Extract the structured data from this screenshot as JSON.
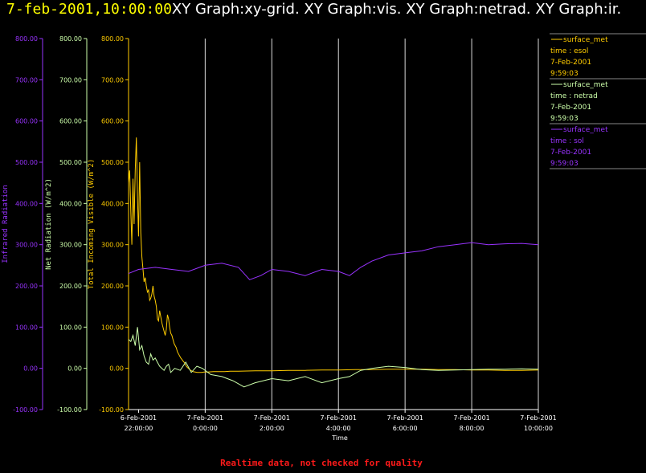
{
  "header": {
    "datetime": "7-feb-2001,10:00:00",
    "graphs": "XY Graph:xy-grid.  XY Graph:vis.  XY Graph:netrad.  XY Graph:ir."
  },
  "footer": {
    "note": "Realtime data, not checked for quality"
  },
  "colors": {
    "visible": "#ffcc00",
    "netrad": "#ccffaa",
    "infrared": "#9933ff",
    "grid": "#ffffff",
    "note": "#ff1a1a"
  },
  "legend": [
    {
      "name": "surface_met",
      "var": "time : esol",
      "date": "7-Feb-2001",
      "time": "9:59:03",
      "color": "#ffcc00"
    },
    {
      "name": "surface_met",
      "var": "time : netrad",
      "date": "7-Feb-2001",
      "time": "9:59:03",
      "color": "#ccffaa"
    },
    {
      "name": "surface_met",
      "var": "time : sol",
      "date": "7-Feb-2001",
      "time": "9:59:03",
      "color": "#9933ff"
    }
  ],
  "chart_data": {
    "type": "line",
    "xlabel": "Time",
    "xlim": [
      "2001-02-06 21:42",
      "2001-02-07 10:00"
    ],
    "x_ticks": [
      {
        "t": "2001-02-06 22:00",
        "date": "6-Feb-2001",
        "time": "22:00:00"
      },
      {
        "t": "2001-02-07 00:00",
        "date": "7-Feb-2001",
        "time": "0:00:00"
      },
      {
        "t": "2001-02-07 02:00",
        "date": "7-Feb-2001",
        "time": "2:00:00"
      },
      {
        "t": "2001-02-07 04:00",
        "date": "7-Feb-2001",
        "time": "4:00:00"
      },
      {
        "t": "2001-02-07 06:00",
        "date": "7-Feb-2001",
        "time": "6:00:00"
      },
      {
        "t": "2001-02-07 08:00",
        "date": "7-Feb-2001",
        "time": "8:00:00"
      },
      {
        "t": "2001-02-07 10:00",
        "date": "7-Feb-2001",
        "time": "10:00:00"
      }
    ],
    "y_axes": [
      {
        "key": "ir",
        "label": "Infrared Radiation",
        "ylim": [
          -100,
          800
        ],
        "ticks": [
          "-100.00",
          "0.00",
          "100.00",
          "200.00",
          "300.00",
          "400.00",
          "500.00",
          "600.00",
          "700.00",
          "800.00"
        ]
      },
      {
        "key": "net",
        "label": "Net Radiation (W/m^2)",
        "ylim": [
          -100,
          800
        ],
        "ticks": [
          "-100.00",
          "0.00",
          "100.00",
          "200.00",
          "300.00",
          "400.00",
          "500.00",
          "600.00",
          "700.00",
          "800.00"
        ]
      },
      {
        "key": "vis",
        "label": "Total Incoming Visible (W/m^2)",
        "ylim": [
          -100,
          800
        ],
        "ticks": [
          "-100.00",
          "0.00",
          "100.00",
          "200.00",
          "300.00",
          "400.00",
          "500.00",
          "600.00",
          "700.00",
          "800.00"
        ]
      }
    ],
    "grid": "vertical",
    "series": [
      {
        "name": "surface_met",
        "axis": "vis",
        "t": [
          "2001-02-06 21:42",
          "2001-02-06 21:44",
          "2001-02-06 21:46",
          "2001-02-06 21:48",
          "2001-02-06 21:50",
          "2001-02-06 21:52",
          "2001-02-06 21:54",
          "2001-02-06 21:56",
          "2001-02-06 21:58",
          "2001-02-06 22:00",
          "2001-02-06 22:02",
          "2001-02-06 22:04",
          "2001-02-06 22:06",
          "2001-02-06 22:08",
          "2001-02-06 22:10",
          "2001-02-06 22:12",
          "2001-02-06 22:14",
          "2001-02-06 22:16",
          "2001-02-06 22:18",
          "2001-02-06 22:20",
          "2001-02-06 22:22",
          "2001-02-06 22:24",
          "2001-02-06 22:26",
          "2001-02-06 22:28",
          "2001-02-06 22:30",
          "2001-02-06 22:32",
          "2001-02-06 22:34",
          "2001-02-06 22:36",
          "2001-02-06 22:38",
          "2001-02-06 22:40",
          "2001-02-06 22:42",
          "2001-02-06 22:44",
          "2001-02-06 22:46",
          "2001-02-06 22:48",
          "2001-02-06 22:50",
          "2001-02-06 22:52",
          "2001-02-06 22:54",
          "2001-02-06 22:56",
          "2001-02-06 22:58",
          "2001-02-06 23:00",
          "2001-02-06 23:02",
          "2001-02-06 23:04",
          "2001-02-06 23:06",
          "2001-02-06 23:08",
          "2001-02-06 23:10",
          "2001-02-06 23:12",
          "2001-02-06 23:14",
          "2001-02-06 23:16",
          "2001-02-06 23:18",
          "2001-02-06 23:20",
          "2001-02-06 23:22",
          "2001-02-06 23:24",
          "2001-02-06 23:26",
          "2001-02-06 23:28",
          "2001-02-06 23:30",
          "2001-02-06 23:34",
          "2001-02-06 23:38",
          "2001-02-06 23:42",
          "2001-02-06 23:46",
          "2001-02-06 23:50",
          "2001-02-06 23:54",
          "2001-02-06 23:58",
          "2001-02-07 00:05",
          "2001-02-07 00:15",
          "2001-02-07 00:25",
          "2001-02-07 00:35",
          "2001-02-07 00:45",
          "2001-02-07 01:00",
          "2001-02-07 01:30",
          "2001-02-07 02:00",
          "2001-02-07 02:30",
          "2001-02-07 03:00",
          "2001-02-07 03:30",
          "2001-02-07 04:00",
          "2001-02-07 04:30",
          "2001-02-07 05:00",
          "2001-02-07 05:30",
          "2001-02-07 06:00",
          "2001-02-07 06:30",
          "2001-02-07 07:00",
          "2001-02-07 07:30",
          "2001-02-07 08:00",
          "2001-02-07 08:30",
          "2001-02-07 09:00",
          "2001-02-07 09:30",
          "2001-02-07 10:00"
        ],
        "y": [
          450,
          480,
          380,
          300,
          460,
          350,
          480,
          560,
          420,
          320,
          500,
          330,
          270,
          240,
          210,
          220,
          200,
          185,
          190,
          165,
          170,
          180,
          200,
          175,
          165,
          150,
          120,
          115,
          140,
          125,
          110,
          100,
          90,
          80,
          95,
          130,
          120,
          100,
          85,
          80,
          70,
          60,
          55,
          50,
          40,
          35,
          30,
          25,
          22,
          18,
          15,
          10,
          5,
          2,
          0,
          -5,
          -8,
          -9,
          -10,
          -10,
          -10,
          -9,
          -9,
          -8,
          -8,
          -8,
          -7,
          -7,
          -6,
          -6,
          -5,
          -5,
          -4,
          -4,
          -3,
          -3,
          -2,
          -2,
          -2,
          -3,
          -3,
          -4,
          -4,
          -5,
          -5,
          -4
        ]
      },
      {
        "name": "surface_met",
        "axis": "net",
        "t": [
          "2001-02-06 21:42",
          "2001-02-06 21:46",
          "2001-02-06 21:50",
          "2001-02-06 21:54",
          "2001-02-06 21:58",
          "2001-02-06 22:02",
          "2001-02-06 22:06",
          "2001-02-06 22:10",
          "2001-02-06 22:14",
          "2001-02-06 22:18",
          "2001-02-06 22:22",
          "2001-02-06 22:26",
          "2001-02-06 22:30",
          "2001-02-06 22:34",
          "2001-02-06 22:38",
          "2001-02-06 22:42",
          "2001-02-06 22:46",
          "2001-02-06 22:50",
          "2001-02-06 22:54",
          "2001-02-06 22:58",
          "2001-02-06 23:05",
          "2001-02-06 23:15",
          "2001-02-06 23:25",
          "2001-02-06 23:35",
          "2001-02-06 23:45",
          "2001-02-06 23:55",
          "2001-02-07 00:10",
          "2001-02-07 00:30",
          "2001-02-07 00:50",
          "2001-02-07 01:10",
          "2001-02-07 01:30",
          "2001-02-07 02:00",
          "2001-02-07 02:30",
          "2001-02-07 03:00",
          "2001-02-07 03:30",
          "2001-02-07 04:00",
          "2001-02-07 04:20",
          "2001-02-07 04:40",
          "2001-02-07 05:00",
          "2001-02-07 05:30",
          "2001-02-07 06:00",
          "2001-02-07 06:30",
          "2001-02-07 07:00",
          "2001-02-07 07:30",
          "2001-02-07 08:00",
          "2001-02-07 08:30",
          "2001-02-07 09:00",
          "2001-02-07 09:30",
          "2001-02-07 10:00"
        ],
        "y": [
          70,
          65,
          80,
          55,
          100,
          45,
          55,
          30,
          15,
          10,
          35,
          20,
          25,
          15,
          5,
          0,
          -5,
          5,
          10,
          -10,
          0,
          -5,
          15,
          -10,
          5,
          0,
          -15,
          -20,
          -30,
          -45,
          -35,
          -25,
          -30,
          -20,
          -35,
          -25,
          -20,
          -5,
          0,
          5,
          2,
          -3,
          -5,
          -4,
          -3,
          -2,
          -2,
          -1,
          -2
        ]
      },
      {
        "name": "surface_met",
        "axis": "ir",
        "t": [
          "2001-02-06 21:42",
          "2001-02-06 22:00",
          "2001-02-06 22:30",
          "2001-02-06 23:00",
          "2001-02-06 23:30",
          "2001-02-07 00:00",
          "2001-02-07 00:30",
          "2001-02-07 01:00",
          "2001-02-07 01:20",
          "2001-02-07 01:40",
          "2001-02-07 02:00",
          "2001-02-07 02:30",
          "2001-02-07 03:00",
          "2001-02-07 03:30",
          "2001-02-07 04:00",
          "2001-02-07 04:20",
          "2001-02-07 04:40",
          "2001-02-07 05:00",
          "2001-02-07 05:30",
          "2001-02-07 06:00",
          "2001-02-07 06:30",
          "2001-02-07 07:00",
          "2001-02-07 07:30",
          "2001-02-07 08:00",
          "2001-02-07 08:30",
          "2001-02-07 09:00",
          "2001-02-07 09:30",
          "2001-02-07 10:00"
        ],
        "y": [
          230,
          240,
          245,
          240,
          235,
          250,
          255,
          245,
          215,
          225,
          240,
          235,
          225,
          240,
          235,
          225,
          245,
          260,
          275,
          280,
          285,
          295,
          300,
          305,
          300,
          302,
          303,
          300
        ]
      }
    ]
  }
}
